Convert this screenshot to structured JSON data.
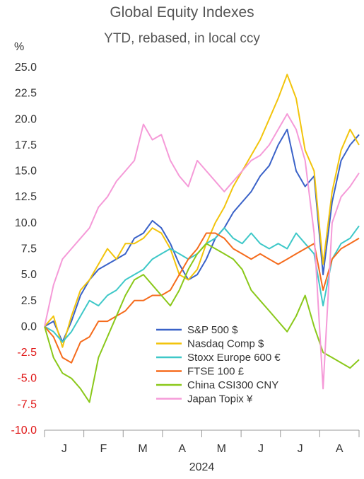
{
  "chart_data": {
    "type": "line",
    "title": "Global Equity Indexes",
    "subtitle": "YTD, rebased, in local ccy",
    "ylabel": "%",
    "xlabel": "2024",
    "ylim": [
      -10,
      25
    ],
    "yticks": [
      "25.0",
      "22.5",
      "20.0",
      "17.5",
      "15.0",
      "12.5",
      "10.0",
      "7.5",
      "5.0",
      "2.5",
      "0.0",
      "-2.5",
      "-5.0",
      "-7.5",
      "-10.0"
    ],
    "xticks": [
      "J",
      "F",
      "M",
      "A",
      "M",
      "J",
      "J",
      "A"
    ],
    "x": [
      0,
      1,
      2,
      3,
      4,
      5,
      6,
      7,
      8,
      9,
      10,
      11,
      12,
      13,
      14,
      15,
      16,
      17,
      18,
      19,
      20,
      21,
      22,
      23,
      24,
      25,
      26,
      27,
      28,
      29,
      30,
      31,
      32,
      33,
      34,
      35
    ],
    "legend_position": "center-right",
    "grid": false,
    "series": [
      {
        "name": "S&P 500 $",
        "color": "#3a62c8",
        "values": [
          0.0,
          0.5,
          -1.5,
          0.5,
          3.0,
          4.5,
          5.5,
          6.0,
          6.5,
          7.0,
          8.5,
          9.0,
          10.2,
          9.5,
          8.0,
          6.0,
          4.5,
          5.0,
          6.5,
          8.5,
          9.5,
          11.0,
          12.0,
          13.0,
          14.5,
          15.5,
          17.5,
          19.0,
          15.0,
          13.5,
          14.5,
          5.0,
          12.0,
          16.0,
          17.5,
          18.5
        ]
      },
      {
        "name": "Nasdaq Comp $",
        "color": "#f2c40c",
        "values": [
          0.0,
          1.0,
          -2.0,
          1.0,
          3.5,
          4.5,
          6.0,
          7.5,
          6.5,
          8.0,
          8.0,
          8.5,
          9.5,
          9.0,
          7.5,
          5.0,
          4.5,
          5.5,
          8.0,
          10.0,
          11.5,
          13.5,
          15.0,
          16.5,
          18.0,
          20.0,
          22.0,
          24.3,
          22.0,
          17.0,
          15.0,
          6.0,
          13.0,
          17.0,
          19.0,
          17.5
        ]
      },
      {
        "name": "Stoxx Europe 600 €",
        "color": "#3ec8c8",
        "values": [
          0.0,
          -0.5,
          -1.5,
          -0.5,
          1.0,
          2.5,
          2.0,
          3.0,
          3.5,
          4.5,
          5.0,
          5.5,
          6.5,
          7.0,
          7.5,
          7.0,
          6.5,
          7.0,
          8.0,
          8.5,
          9.5,
          8.5,
          8.0,
          9.0,
          8.0,
          7.5,
          8.0,
          7.5,
          9.0,
          8.0,
          7.0,
          2.0,
          6.5,
          8.0,
          8.5,
          9.7
        ]
      },
      {
        "name": "FTSE 100 £",
        "color": "#f56b1c",
        "values": [
          0.0,
          -1.0,
          -3.0,
          -3.5,
          -1.5,
          -1.0,
          0.5,
          0.5,
          1.0,
          1.5,
          2.5,
          2.5,
          3.0,
          3.0,
          3.5,
          5.0,
          6.5,
          7.5,
          9.0,
          9.0,
          8.5,
          7.5,
          7.0,
          6.5,
          7.0,
          6.5,
          6.0,
          6.5,
          7.0,
          7.5,
          8.0,
          3.5,
          6.5,
          7.5,
          8.0,
          8.5
        ]
      },
      {
        "name": "China CSI300 CNY",
        "color": "#8ac81a",
        "values": [
          0.0,
          -3.0,
          -4.5,
          -5.0,
          -6.0,
          -7.3,
          -3.0,
          -1.0,
          1.0,
          3.0,
          4.5,
          5.0,
          4.0,
          3.0,
          2.0,
          3.5,
          5.5,
          7.0,
          8.0,
          7.5,
          7.0,
          6.5,
          5.5,
          3.5,
          2.5,
          1.5,
          0.5,
          -0.5,
          1.0,
          3.0,
          0.0,
          -2.5,
          -3.0,
          -3.5,
          -4.0,
          -3.2
        ]
      },
      {
        "name": "Japan Topix ¥",
        "color": "#f59ad8",
        "values": [
          0.0,
          4.0,
          6.5,
          7.5,
          8.5,
          9.5,
          11.5,
          12.5,
          14.0,
          15.0,
          16.0,
          19.5,
          18.0,
          18.5,
          16.0,
          14.5,
          13.5,
          16.0,
          15.0,
          14.0,
          13.0,
          14.0,
          15.0,
          16.0,
          16.5,
          17.5,
          19.0,
          20.5,
          19.0,
          16.0,
          9.0,
          -6.0,
          10.0,
          12.5,
          13.5,
          14.8
        ]
      }
    ]
  }
}
